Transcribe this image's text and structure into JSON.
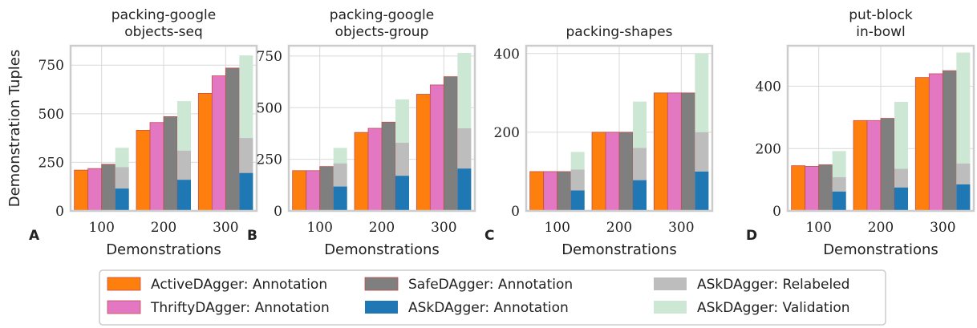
{
  "chart_data": [
    {
      "type": "bar",
      "panel": "A",
      "title": [
        "packing-google",
        "objects-seq"
      ],
      "xlabel": "Demonstrations",
      "ylabel": "Demonstration Tuples",
      "categories": [
        "100",
        "200",
        "300"
      ],
      "ylim": [
        0,
        850
      ],
      "yticks": [
        0,
        250,
        500,
        750
      ],
      "series": {
        "ActiveDAgger: Annotation": [
          210,
          415,
          605
        ],
        "ThriftyDAgger: Annotation": [
          218,
          455,
          695
        ],
        "SafeDAgger: Annotation": [
          240,
          485,
          735
        ],
        "ASkDAgger: Annotation": [
          115,
          160,
          195
        ],
        "ASkDAgger: Relabeled": [
          225,
          310,
          375
        ],
        "ASkDAgger: Validation": [
          325,
          565,
          800
        ]
      }
    },
    {
      "type": "bar",
      "panel": "B",
      "title": [
        "packing-google",
        "objects-group"
      ],
      "xlabel": "Demonstrations",
      "ylabel": "",
      "categories": [
        "100",
        "200",
        "300"
      ],
      "ylim": [
        0,
        800
      ],
      "yticks": [
        0,
        250,
        500,
        750
      ],
      "series": {
        "ActiveDAgger: Annotation": [
          195,
          380,
          565
        ],
        "ThriftyDAgger: Annotation": [
          195,
          400,
          610
        ],
        "SafeDAgger: Annotation": [
          215,
          430,
          650
        ],
        "ASkDAgger: Annotation": [
          118,
          170,
          205
        ],
        "ASkDAgger: Relabeled": [
          230,
          330,
          400
        ],
        "ASkDAgger: Validation": [
          305,
          540,
          765
        ]
      }
    },
    {
      "type": "bar",
      "panel": "C",
      "title": [
        "packing-shapes"
      ],
      "xlabel": "Demonstrations",
      "ylabel": "",
      "categories": [
        "100",
        "200",
        "300"
      ],
      "ylim": [
        0,
        420
      ],
      "yticks": [
        0,
        200,
        400
      ],
      "series": {
        "ActiveDAgger: Annotation": [
          100,
          200,
          300
        ],
        "ThriftyDAgger: Annotation": [
          100,
          200,
          300
        ],
        "SafeDAgger: Annotation": [
          100,
          200,
          300
        ],
        "ASkDAgger: Annotation": [
          52,
          78,
          100
        ],
        "ASkDAgger: Relabeled": [
          105,
          160,
          200
        ],
        "ASkDAgger: Validation": [
          150,
          278,
          400
        ]
      }
    },
    {
      "type": "bar",
      "panel": "D",
      "title": [
        "put-block",
        "in-bowl"
      ],
      "xlabel": "Demonstrations",
      "ylabel": "",
      "categories": [
        "100",
        "200",
        "300"
      ],
      "ylim": [
        0,
        530
      ],
      "yticks": [
        0,
        200,
        400
      ],
      "series": {
        "ActiveDAgger: Annotation": [
          145,
          290,
          428
        ],
        "ThriftyDAgger: Annotation": [
          143,
          290,
          440
        ],
        "SafeDAgger: Annotation": [
          148,
          297,
          450
        ],
        "ASkDAgger: Annotation": [
          62,
          75,
          85
        ],
        "ASkDAgger: Relabeled": [
          108,
          135,
          152
        ],
        "ASkDAgger: Validation": [
          192,
          350,
          508
        ]
      }
    }
  ],
  "legend": [
    {
      "label": "ActiveDAgger: Annotation",
      "color": "#ff7f0e"
    },
    {
      "label": "SafeDAgger: Annotation",
      "color": "#7f7f7f"
    },
    {
      "label": "ASkDAgger: Relabeled",
      "color": "#bdbdbd"
    },
    {
      "label": "ThriftyDAgger: Annotation",
      "color": "#e377c2"
    },
    {
      "label": "ASkDAgger: Annotation",
      "color": "#1f77b4"
    },
    {
      "label": "ASkDAgger: Validation",
      "color": "#cce8d4"
    }
  ]
}
